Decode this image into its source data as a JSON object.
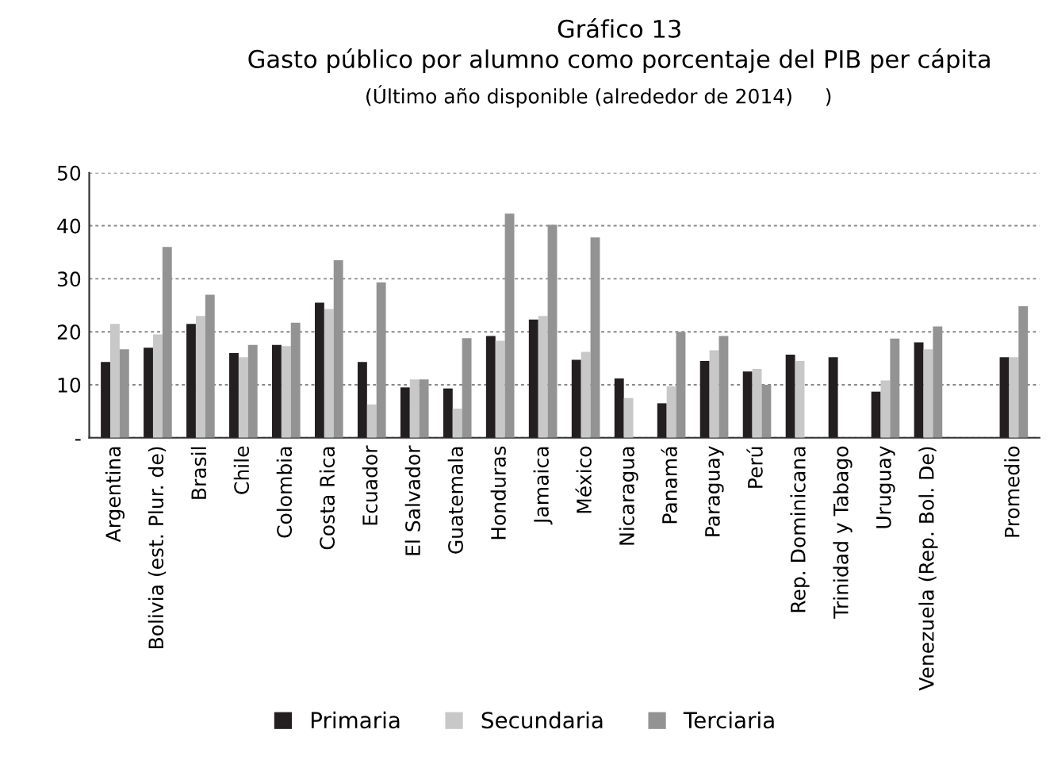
{
  "chart_data": {
    "type": "bar",
    "title": "Gráfico 13\nGasto público por alumno como porcentaje del PIB per cápita",
    "subtitle": "(Último año disponible (alrededor de 2014)     )",
    "categories": [
      "Argentina",
      "Bolivia (est. Plur. de)",
      "Brasil",
      "Chile",
      "Colombia",
      "Costa Rica",
      "Ecuador",
      "El Salvador",
      "Guatemala",
      "Honduras",
      "Jamaica",
      "México",
      "Nicaragua",
      "Panamá",
      "Paraguay",
      "Perú",
      "Rep. Dominicana",
      "Trinidad y Tabago",
      "Uruguay",
      "Venezuela (Rep. Bol. De)",
      null,
      "Promedio"
    ],
    "series": [
      {
        "name": "Primaria",
        "color": "#231f20",
        "values": [
          14.3,
          17,
          21.5,
          16,
          17.5,
          25.5,
          14.3,
          9.5,
          9.3,
          19.2,
          22.3,
          14.7,
          11.2,
          6.5,
          14.5,
          12.5,
          15.7,
          15.2,
          8.7,
          18,
          null,
          15.2
        ]
      },
      {
        "name": "Secundaria",
        "color": "#c8c8c8",
        "values": [
          21.5,
          19.5,
          23,
          15.2,
          17.3,
          24.3,
          6.3,
          11,
          5.5,
          18.3,
          23,
          16.2,
          7.5,
          9.7,
          16.5,
          13,
          14.5,
          null,
          10.8,
          16.7,
          null,
          15.2
        ]
      },
      {
        "name": "Terciaria",
        "color": "#939393",
        "values": [
          16.7,
          36,
          27,
          17.5,
          21.7,
          33.5,
          29.3,
          11,
          18.8,
          42.3,
          40.2,
          37.8,
          null,
          20,
          19.2,
          10,
          null,
          null,
          18.7,
          21,
          null,
          24.8
        ]
      }
    ],
    "ylim": [
      0,
      50
    ],
    "yticks": [
      {
        "value": 0,
        "label": "-"
      },
      10,
      20,
      30,
      40,
      50
    ],
    "grid": "y",
    "legend": "bottom"
  }
}
